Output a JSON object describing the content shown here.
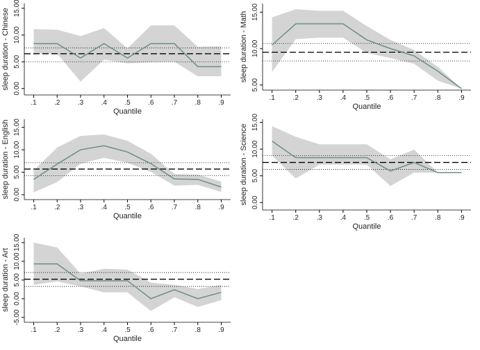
{
  "chart_data": [
    {
      "type": "line",
      "ylabel": "sleep duration - Chinese",
      "xlabel": "Quantile",
      "x": [
        0.1,
        0.2,
        0.3,
        0.4,
        0.5,
        0.6,
        0.7,
        0.8,
        0.9
      ],
      "xticks": [
        {
          "value": 0.1,
          "label": ".1"
        },
        {
          "value": 0.2,
          "label": ".2"
        },
        {
          "value": 0.3,
          "label": ".3"
        },
        {
          "value": 0.4,
          "label": ".4"
        },
        {
          "value": 0.5,
          "label": ".5"
        },
        {
          "value": 0.6,
          "label": ".6"
        },
        {
          "value": 0.7,
          "label": ".7"
        },
        {
          "value": 0.8,
          "label": ".8"
        },
        {
          "value": 0.9,
          "label": ".9"
        }
      ],
      "xlim": [
        0.06,
        0.94
      ],
      "ylim": [
        -1.2,
        15.9
      ],
      "yticks": [
        {
          "value": 0,
          "label": "0.00"
        },
        {
          "value": 5,
          "label": "5.00"
        },
        {
          "value": 10,
          "label": "10.00"
        },
        {
          "value": 15,
          "label": "15.00"
        }
      ],
      "series": [
        {
          "color": "#6b8f80",
          "values": [
            8.4,
            8.4,
            5.7,
            8.4,
            5.7,
            8.4,
            8.4,
            4.1,
            4.1
          ]
        }
      ],
      "ci_lower": [
        6.5,
        6.5,
        1.3,
        5.4,
        4.7,
        4.9,
        5.0,
        2.3,
        2.3
      ],
      "ci_upper": [
        11.1,
        11.0,
        9.8,
        11.3,
        7.5,
        11.8,
        11.8,
        7.8,
        7.9
      ],
      "ci_color": "#d4d4d4",
      "ols": 6.5,
      "ols_ci": [
        5.0,
        7.6
      ]
    },
    {
      "type": "line",
      "ylabel": "sleep duration - Math",
      "xlabel": "Quantile",
      "x": [
        0.1,
        0.2,
        0.3,
        0.4,
        0.5,
        0.6,
        0.7,
        0.8,
        0.9
      ],
      "xticks": [
        {
          "value": 0.1,
          "label": ".1"
        },
        {
          "value": 0.2,
          "label": ".2"
        },
        {
          "value": 0.3,
          "label": ".3"
        },
        {
          "value": 0.4,
          "label": ".4"
        },
        {
          "value": 0.5,
          "label": ".5"
        },
        {
          "value": 0.6,
          "label": ".6"
        },
        {
          "value": 0.7,
          "label": ".7"
        },
        {
          "value": 0.8,
          "label": ".8"
        },
        {
          "value": 0.9,
          "label": ".9"
        }
      ],
      "xlim": [
        0.06,
        0.94
      ],
      "ylim": [
        4.3,
        16.2
      ],
      "yticks": [
        {
          "value": 5,
          "label": "5.00"
        },
        {
          "value": 10,
          "label": "10.00"
        },
        {
          "value": 15,
          "label": "15.00"
        }
      ],
      "series": [
        {
          "color": "#6b8f80",
          "values": [
            10.5,
            13.4,
            13.4,
            13.4,
            11.2,
            10.0,
            9.0,
            6.9,
            4.5
          ]
        }
      ],
      "ci_lower": [
        6.8,
        11.3,
        11.5,
        11.5,
        9.4,
        8.7,
        7.9,
        5.6,
        4.5
      ],
      "ci_upper": [
        14.3,
        15.4,
        15.2,
        15.2,
        13.1,
        11.2,
        9.8,
        7.5,
        4.5
      ],
      "ci_color": "#d4d4d4",
      "ols": 9.5,
      "ols_ci": [
        8.3,
        10.7
      ]
    },
    {
      "type": "line",
      "ylabel": "sleep duration - English",
      "xlabel": "Quantile",
      "x": [
        0.1,
        0.2,
        0.3,
        0.4,
        0.5,
        0.6,
        0.7,
        0.8,
        0.9
      ],
      "xticks": [
        {
          "value": 0.1,
          "label": ".1"
        },
        {
          "value": 0.2,
          "label": ".2"
        },
        {
          "value": 0.3,
          "label": ".3"
        },
        {
          "value": 0.4,
          "label": ".4"
        },
        {
          "value": 0.5,
          "label": ".5"
        },
        {
          "value": 0.6,
          "label": ".6"
        },
        {
          "value": 0.7,
          "label": ".7"
        },
        {
          "value": 0.8,
          "label": ".8"
        },
        {
          "value": 0.9,
          "label": ".9"
        }
      ],
      "xlim": [
        0.06,
        0.94
      ],
      "ylim": [
        -1.1,
        16.8
      ],
      "yticks": [
        {
          "value": 0,
          "label": "0.00"
        },
        {
          "value": 5,
          "label": "5.00"
        },
        {
          "value": 10,
          "label": "10.00"
        },
        {
          "value": 15,
          "label": "15.00"
        }
      ],
      "series": [
        {
          "color": "#6b8f80",
          "values": [
            3.4,
            6.8,
            10.0,
            10.9,
            9.5,
            6.9,
            3.5,
            3.4,
            1.7
          ]
        }
      ],
      "ci_lower": [
        0.5,
        2.8,
        6.9,
        8.2,
        7.1,
        5.1,
        2.0,
        2.2,
        0.6
      ],
      "ci_upper": [
        5.4,
        10.5,
        13.1,
        13.4,
        12.0,
        9.1,
        4.6,
        4.5,
        2.9
      ],
      "ci_color": "#d4d4d4",
      "ols": 5.7,
      "ols_ci": [
        4.2,
        7.1
      ]
    },
    {
      "type": "line",
      "ylabel": "sleep duration - Science",
      "xlabel": "Quantile",
      "x": [
        0.1,
        0.2,
        0.3,
        0.4,
        0.5,
        0.6,
        0.7,
        0.8,
        0.9
      ],
      "xticks": [
        {
          "value": 0.1,
          "label": ".1"
        },
        {
          "value": 0.2,
          "label": ".2"
        },
        {
          "value": 0.3,
          "label": ".3"
        },
        {
          "value": 0.4,
          "label": ".4"
        },
        {
          "value": 0.5,
          "label": ".5"
        },
        {
          "value": 0.6,
          "label": ".6"
        },
        {
          "value": 0.7,
          "label": ".7"
        },
        {
          "value": 0.8,
          "label": ".8"
        },
        {
          "value": 0.9,
          "label": ".9"
        }
      ],
      "xlim": [
        0.06,
        0.94
      ],
      "ylim": [
        -1.4,
        15.6
      ],
      "yticks": [
        {
          "value": 0,
          "label": "0.00"
        },
        {
          "value": 5,
          "label": "5.00"
        },
        {
          "value": 10,
          "label": "10.00"
        },
        {
          "value": 15,
          "label": "15.00"
        }
      ],
      "series": [
        {
          "color": "#6b8f80",
          "values": [
            11.5,
            8.4,
            8.4,
            8.4,
            8.4,
            5.9,
            7.5,
            5.6,
            5.6
          ]
        }
      ],
      "ci_lower": [
        8.8,
        4.5,
        7.1,
        7.1,
        7.1,
        3.1,
        5.6,
        5.6,
        5.6
      ],
      "ci_upper": [
        14.3,
        12.3,
        10.9,
        10.9,
        10.9,
        8.1,
        9.9,
        5.6,
        5.6
      ],
      "ci_color": "#d4d4d4",
      "ols": 7.5,
      "ols_ci": [
        6.2,
        8.8
      ]
    },
    {
      "type": "line",
      "ylabel": "sleep duration - Art",
      "xlabel": "Quantile",
      "x": [
        0.1,
        0.2,
        0.3,
        0.4,
        0.5,
        0.6,
        0.7,
        0.8,
        0.9
      ],
      "xticks": [
        {
          "value": 0.1,
          "label": ".1"
        },
        {
          "value": 0.2,
          "label": ".2"
        },
        {
          "value": 0.3,
          "label": ".3"
        },
        {
          "value": 0.4,
          "label": ".4"
        },
        {
          "value": 0.5,
          "label": ".5"
        },
        {
          "value": 0.6,
          "label": ".6"
        },
        {
          "value": 0.7,
          "label": ".7"
        },
        {
          "value": 0.8,
          "label": ".8"
        },
        {
          "value": 0.9,
          "label": ".9"
        }
      ],
      "xlim": [
        0.06,
        0.94
      ],
      "ylim": [
        -6.3,
        16.3
      ],
      "yticks": [
        {
          "value": -5,
          "label": "-5.00"
        },
        {
          "value": 0,
          "label": "0.00"
        },
        {
          "value": 5,
          "label": "5.00"
        },
        {
          "value": 10,
          "label": "10.00"
        },
        {
          "value": 15,
          "label": "15.00"
        }
      ],
      "series": [
        {
          "color": "#6b8f80",
          "values": [
            9.3,
            9.3,
            4.8,
            4.8,
            4.8,
            0.0,
            2.4,
            0.0,
            1.7
          ]
        }
      ],
      "ci_lower": [
        3.7,
        4.6,
        3.3,
        1.7,
        1.7,
        -3.3,
        0.4,
        -2.2,
        -0.4
      ],
      "ci_upper": [
        15.0,
        13.7,
        6.7,
        8.0,
        7.8,
        4.3,
        3.7,
        2.6,
        3.7
      ],
      "ci_color": "#d4d4d4",
      "ols": 5.2,
      "ols_ci": [
        3.3,
        7.0
      ]
    }
  ]
}
